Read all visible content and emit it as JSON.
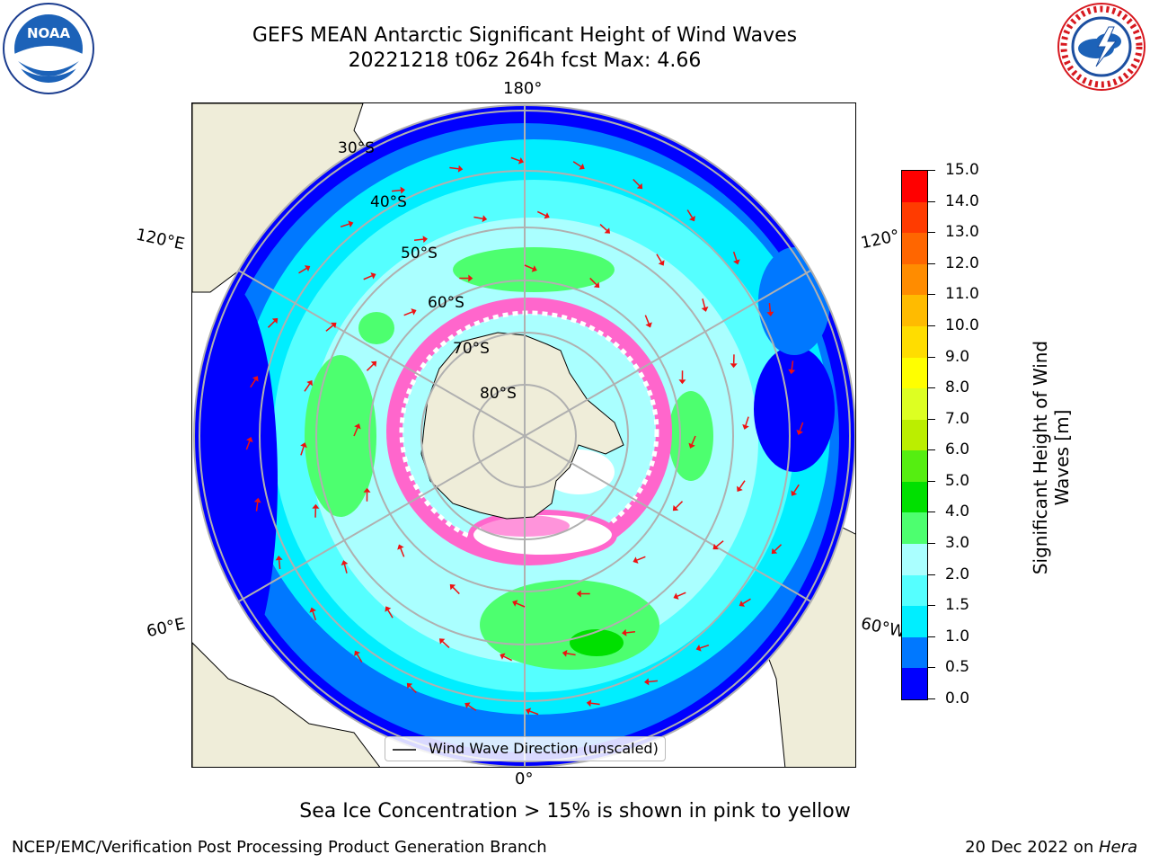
{
  "title": {
    "line1": "GEFS MEAN Antarctic Significant Height of Wind Waves",
    "line2": "20221218 t06z 264h fcst   Max: 4.66"
  },
  "logos": {
    "left": "noaa-logo",
    "right": "nws-logo"
  },
  "map": {
    "projection": "south-polar-stereographic",
    "longitude_labels": {
      "top": "180°",
      "bottom": "0°",
      "upper_left": "120°E",
      "lower_left": "60°E",
      "upper_right": "120°",
      "lower_right": "60°W"
    },
    "latitude_labels": [
      "30°S",
      "40°S",
      "50°S",
      "60°S",
      "70°S",
      "80°S"
    ],
    "legend_label": "Wind Wave Direction (unscaled)",
    "colors": {
      "land": "#efedd9",
      "ice": "#ff66cc",
      "arrow": "#ee1111",
      "grid": "#b0b0b0"
    }
  },
  "colorbar": {
    "label": "Significant Height of Wind Waves [m]",
    "ticks": [
      "0.0",
      "0.5",
      "1.0",
      "1.5",
      "2.0",
      "3.0",
      "4.0",
      "5.0",
      "6.0",
      "7.0",
      "8.0",
      "9.0",
      "10.0",
      "11.0",
      "12.0",
      "13.0",
      "14.0",
      "15.0"
    ],
    "colors": [
      "#0000ff",
      "#0078ff",
      "#00eeff",
      "#55ffff",
      "#aaffff",
      "#4dff6f",
      "#00e000",
      "#55ee11",
      "#bbee00",
      "#ddff22",
      "#ffff00",
      "#ffdd00",
      "#ffbb00",
      "#ff8c00",
      "#ff6600",
      "#ff3b00",
      "#ff0000"
    ]
  },
  "subtitle": "Sea Ice Concentration > 15% is shown in pink to yellow",
  "footer": {
    "left": "NCEP/EMC/Verification Post Processing Product Generation Branch",
    "right_prefix": "20 Dec 2022 on ",
    "right_machine": "Hera"
  }
}
